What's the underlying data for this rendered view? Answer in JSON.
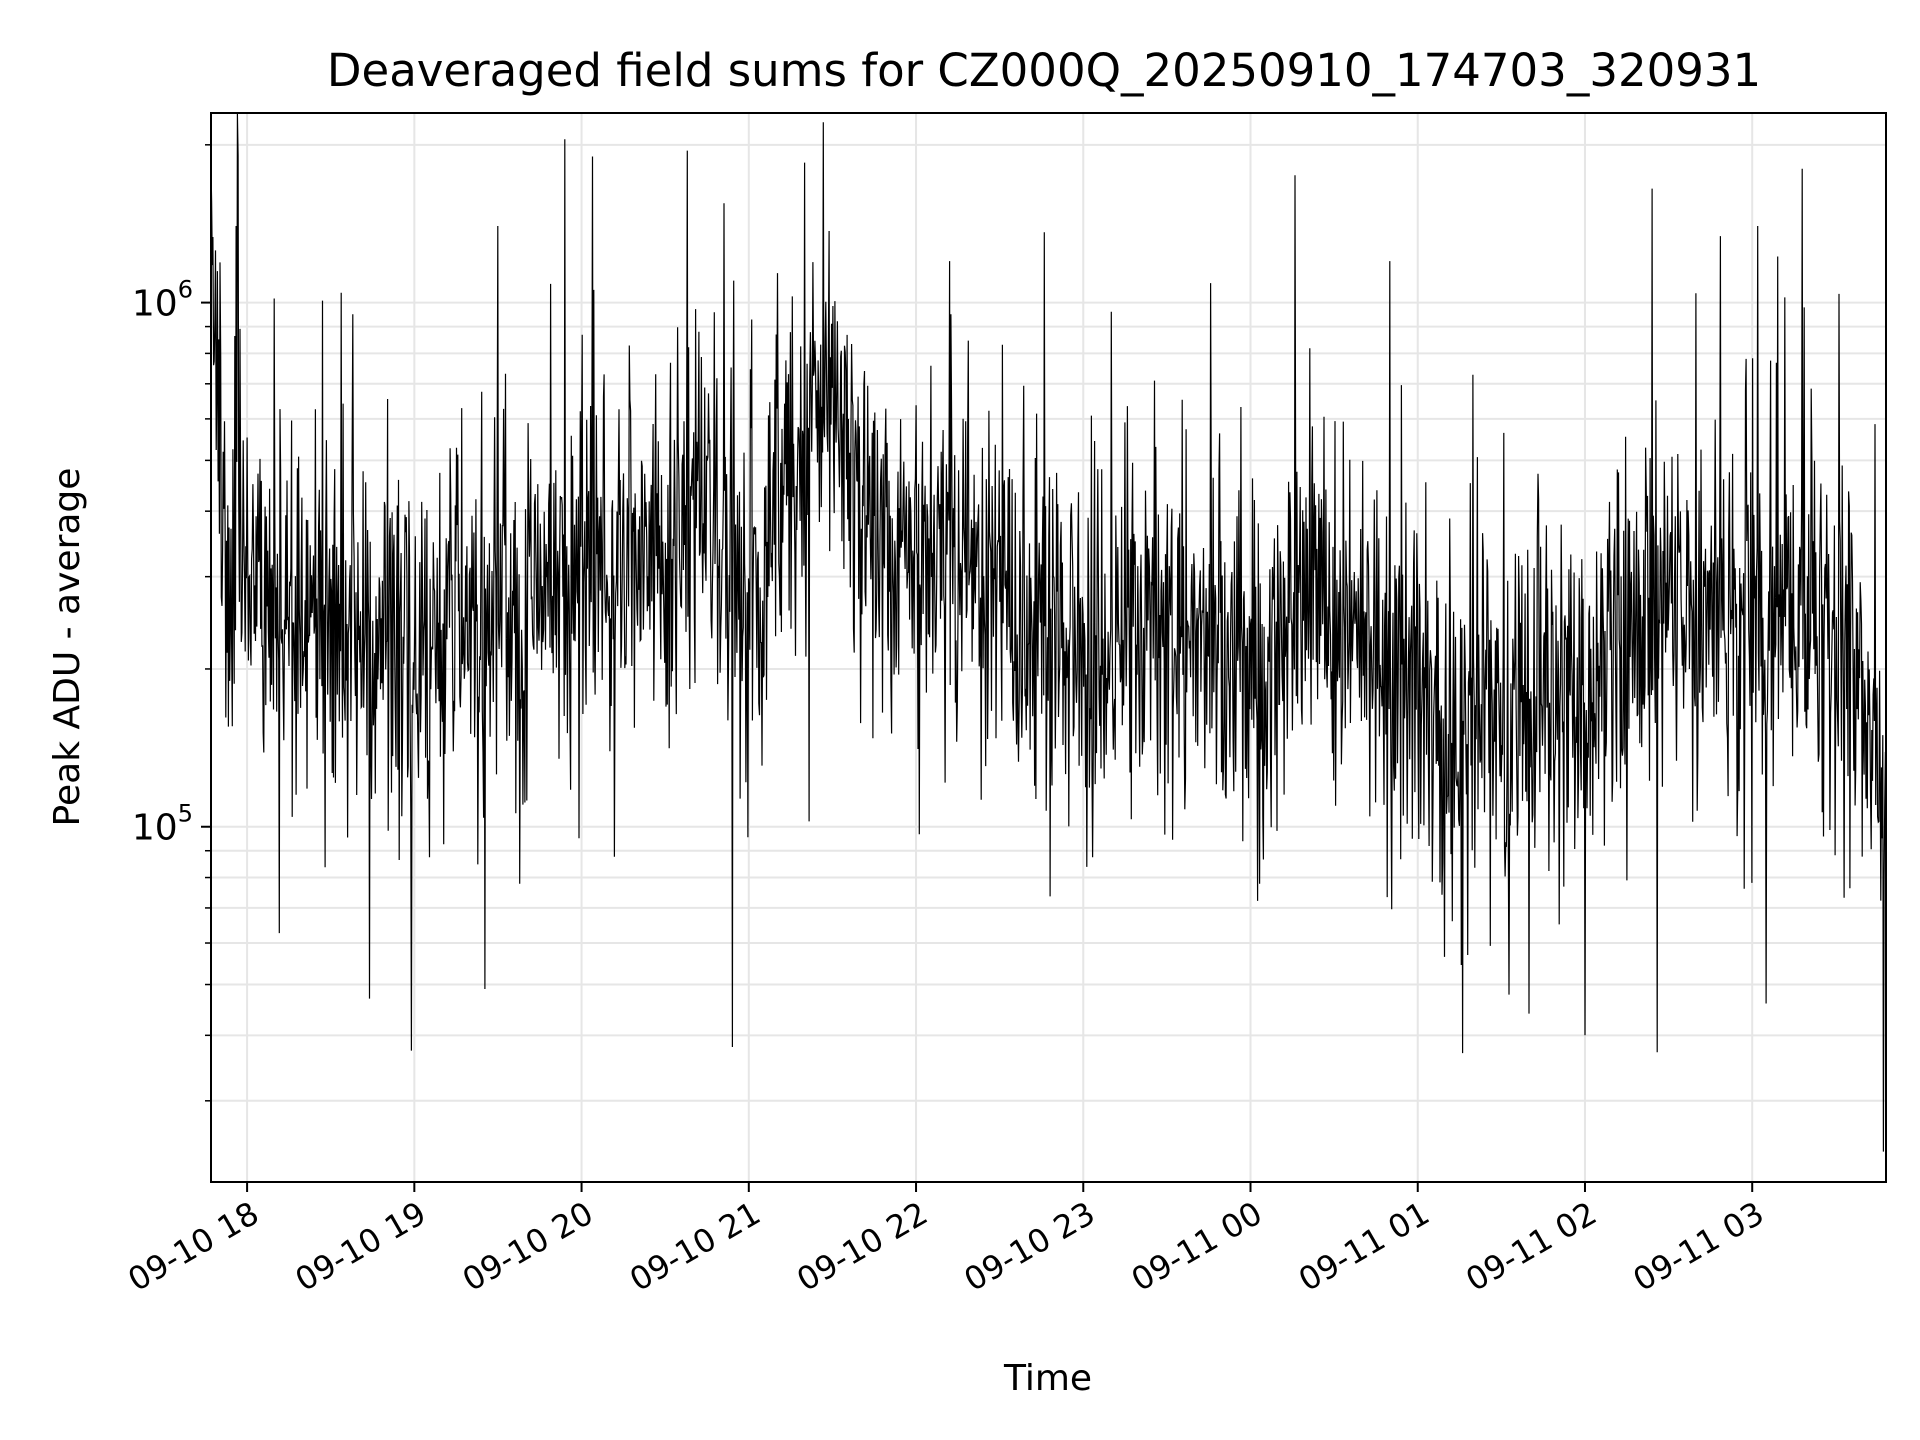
{
  "chart_data": {
    "type": "line",
    "title": "Deaveraged field sums for CZ000Q_20250910_174703_320931",
    "xlabel": "Time",
    "ylabel": "Peak ADU - average",
    "y_scale": "log",
    "ylim": [
      21000,
      2300000
    ],
    "xlim": [
      "2025-09-10T17:47:03",
      "2025-09-11T03:48:00"
    ],
    "grid": true,
    "line_color": "#000000",
    "grid_color": "#e6e6e6",
    "x_ticks": [
      {
        "value": "2025-09-10T18:00:00",
        "label": "09-10 18"
      },
      {
        "value": "2025-09-10T19:00:00",
        "label": "09-10 19"
      },
      {
        "value": "2025-09-10T20:00:00",
        "label": "09-10 20"
      },
      {
        "value": "2025-09-10T21:00:00",
        "label": "09-10 21"
      },
      {
        "value": "2025-09-10T22:00:00",
        "label": "09-10 22"
      },
      {
        "value": "2025-09-10T23:00:00",
        "label": "09-10 23"
      },
      {
        "value": "2025-09-11T00:00:00",
        "label": "09-11 00"
      },
      {
        "value": "2025-09-11T01:00:00",
        "label": "09-11 01"
      },
      {
        "value": "2025-09-11T02:00:00",
        "label": "09-11 02"
      },
      {
        "value": "2025-09-11T03:00:00",
        "label": "09-11 03"
      }
    ],
    "y_ticks": [
      {
        "value": 100000,
        "base": "10",
        "exponent": "5"
      },
      {
        "value": 1000000,
        "base": "10",
        "exponent": "6"
      }
    ],
    "series": [
      {
        "x": [
          "2025-09-10T17:47:03",
          "2025-09-10T17:52:00",
          "2025-09-10T18:00:00",
          "2025-09-10T18:08:00",
          "2025-09-10T18:16:00",
          "2025-09-10T18:24:00",
          "2025-09-10T18:32:00",
          "2025-09-10T18:40:00",
          "2025-09-10T18:48:00",
          "2025-09-10T18:56:00",
          "2025-09-10T19:04:00",
          "2025-09-10T19:12:00",
          "2025-09-10T19:20:00",
          "2025-09-10T19:28:00",
          "2025-09-10T19:36:00",
          "2025-09-10T19:44:00",
          "2025-09-10T19:52:00",
          "2025-09-10T20:00:00",
          "2025-09-10T20:08:00",
          "2025-09-10T20:16:00",
          "2025-09-10T20:24:00",
          "2025-09-10T20:32:00",
          "2025-09-10T20:40:00",
          "2025-09-10T20:48:00",
          "2025-09-10T20:56:00",
          "2025-09-10T21:04:00",
          "2025-09-10T21:12:00",
          "2025-09-10T21:20:00",
          "2025-09-10T21:28:00",
          "2025-09-10T21:36:00",
          "2025-09-10T21:44:00",
          "2025-09-10T21:52:00",
          "2025-09-10T22:00:00",
          "2025-09-10T22:08:00",
          "2025-09-10T22:16:00",
          "2025-09-10T22:24:00",
          "2025-09-10T22:32:00",
          "2025-09-10T22:40:00",
          "2025-09-10T22:48:00",
          "2025-09-10T22:56:00",
          "2025-09-10T23:04:00",
          "2025-09-10T23:12:00",
          "2025-09-10T23:20:00",
          "2025-09-10T23:28:00",
          "2025-09-10T23:36:00",
          "2025-09-10T23:44:00",
          "2025-09-10T23:52:00",
          "2025-09-11T00:00:00",
          "2025-09-11T00:08:00",
          "2025-09-11T00:16:00",
          "2025-09-11T00:24:00",
          "2025-09-11T00:32:00",
          "2025-09-11T00:40:00",
          "2025-09-11T00:48:00",
          "2025-09-11T00:56:00",
          "2025-09-11T01:04:00",
          "2025-09-11T01:12:00",
          "2025-09-11T01:20:00",
          "2025-09-11T01:28:00",
          "2025-09-11T01:36:00",
          "2025-09-11T01:44:00",
          "2025-09-11T01:52:00",
          "2025-09-11T02:00:00",
          "2025-09-11T02:08:00",
          "2025-09-11T02:16:00",
          "2025-09-11T02:24:00",
          "2025-09-11T02:32:00",
          "2025-09-11T02:40:00",
          "2025-09-11T02:48:00",
          "2025-09-11T02:56:00",
          "2025-09-11T03:04:00",
          "2025-09-11T03:12:00",
          "2025-09-11T03:20:00",
          "2025-09-11T03:28:00",
          "2025-09-11T03:36:00",
          "2025-09-11T03:44:00",
          "2025-09-11T03:48:00"
        ],
        "y": [
          1200000,
          290000,
          300000,
          260000,
          280000,
          270000,
          240000,
          220000,
          230000,
          200000,
          210000,
          240000,
          260000,
          250000,
          230000,
          280000,
          300000,
          320000,
          340000,
          350000,
          370000,
          380000,
          360000,
          350000,
          300000,
          290000,
          360000,
          520000,
          600000,
          480000,
          380000,
          340000,
          310000,
          320000,
          340000,
          300000,
          270000,
          240000,
          250000,
          230000,
          220000,
          230000,
          240000,
          250000,
          240000,
          230000,
          210000,
          200000,
          190000,
          260000,
          280000,
          240000,
          230000,
          220000,
          190000,
          170000,
          165000,
          180000,
          175000,
          160000,
          170000,
          190000,
          150000,
          200000,
          230000,
          240000,
          260000,
          250000,
          240000,
          230000,
          250000,
          260000,
          250000,
          220000,
          180000,
          160000,
          110000
        ],
        "peaks": [
          {
            "x": "2025-09-10T17:56:00",
            "y": 1400000
          },
          {
            "x": "2025-09-10T18:38:00",
            "y": 950000
          },
          {
            "x": "2025-09-10T18:44:00",
            "y": 47000
          },
          {
            "x": "2025-09-10T19:30:00",
            "y": 1400000
          },
          {
            "x": "2025-09-10T19:54:00",
            "y": 2050000
          },
          {
            "x": "2025-09-10T20:04:00",
            "y": 1900000
          },
          {
            "x": "2025-09-10T20:38:00",
            "y": 1950000
          },
          {
            "x": "2025-09-10T20:54:00",
            "y": 38000
          },
          {
            "x": "2025-09-10T21:20:00",
            "y": 1850000
          },
          {
            "x": "2025-09-10T22:12:00",
            "y": 1200000
          },
          {
            "x": "2025-09-11T00:16:00",
            "y": 1750000
          },
          {
            "x": "2025-09-11T00:50:00",
            "y": 1200000
          },
          {
            "x": "2025-09-11T01:16:00",
            "y": 37000
          },
          {
            "x": "2025-09-11T01:40:00",
            "y": 44000
          },
          {
            "x": "2025-09-11T02:00:00",
            "y": 40000
          },
          {
            "x": "2025-09-11T02:24:00",
            "y": 1650000
          },
          {
            "x": "2025-09-11T03:02:00",
            "y": 1400000
          },
          {
            "x": "2025-09-11T03:18:00",
            "y": 1800000
          },
          {
            "x": "2025-09-11T03:05:00",
            "y": 46000
          },
          {
            "x": "2025-09-11T03:47:00",
            "y": 24000
          }
        ]
      }
    ]
  }
}
